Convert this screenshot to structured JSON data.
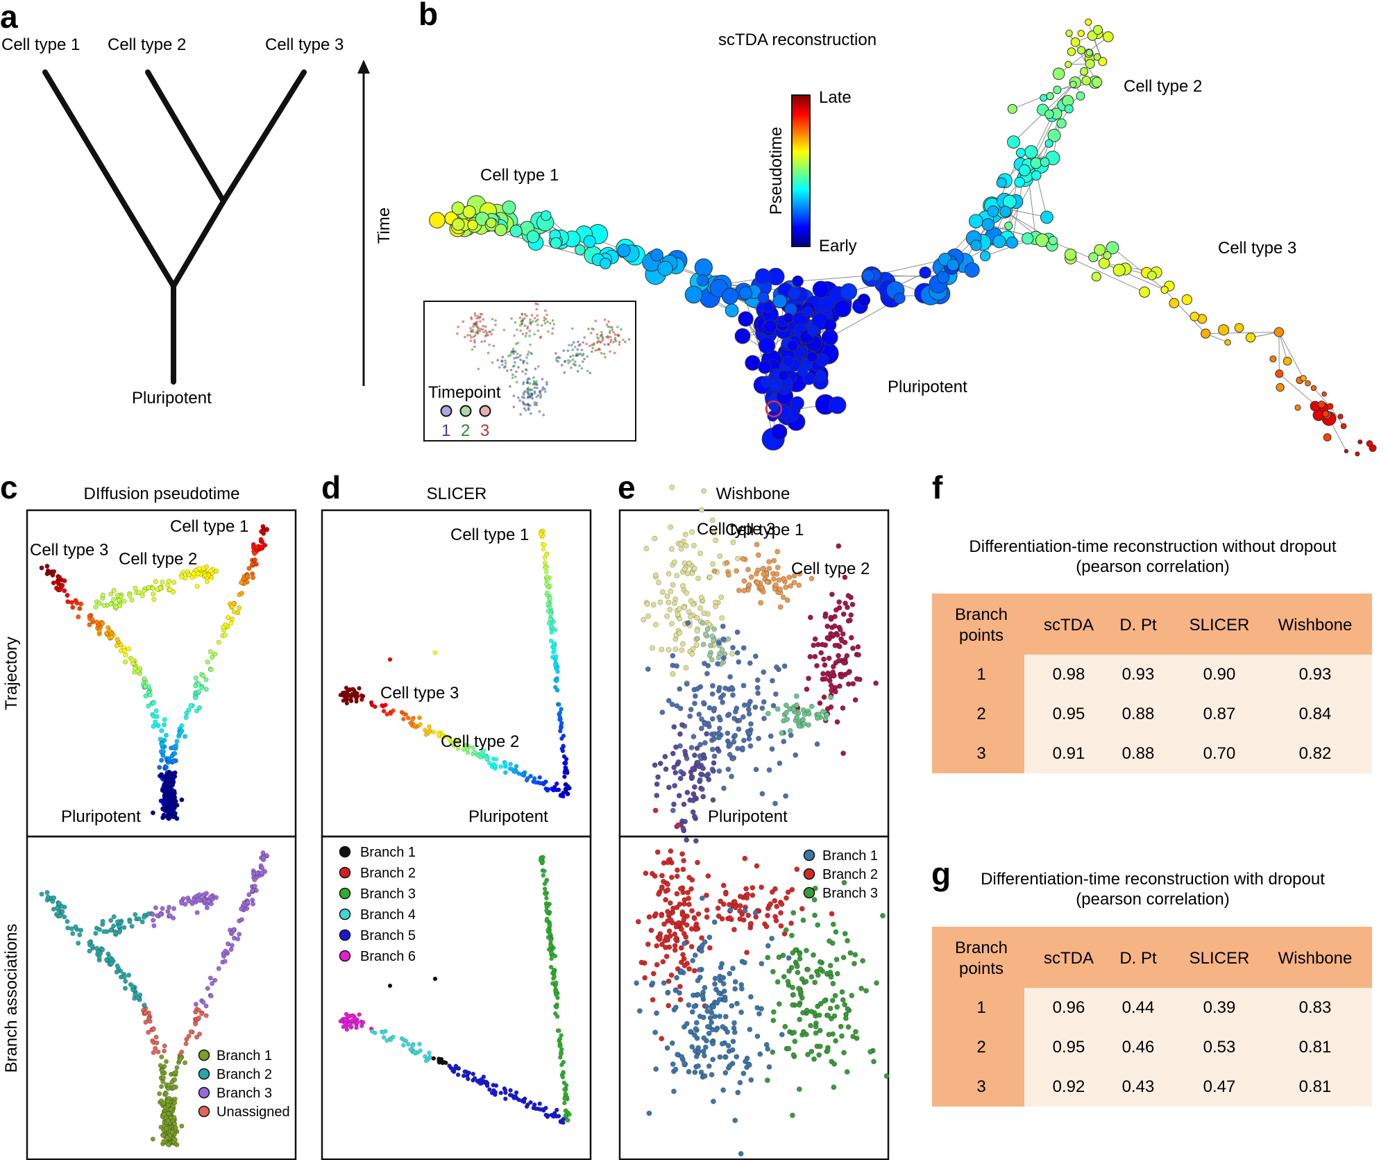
{
  "panels": {
    "a": {
      "letter": "a",
      "labels": [
        "Cell type 1",
        "Cell type 2",
        "Cell type 3"
      ],
      "root": "Pluripotent",
      "axis": "Time"
    },
    "b": {
      "letter": "b",
      "title": "scTDA reconstruction",
      "colorbar": {
        "label": "Pseudotime",
        "high": "Late",
        "low": "Early"
      },
      "labels": {
        "ct1": "Cell type 1",
        "ct2": "Cell type 2",
        "ct3": "Cell type 3",
        "root": "Pluripotent"
      },
      "inset": {
        "title": "Timepoint",
        "items": [
          "1",
          "2",
          "3"
        ],
        "colors": [
          "#3b3bb0",
          "#2a8a2a",
          "#c03030"
        ]
      }
    },
    "c": {
      "letter": "c",
      "title": "DIffusion pseudotime",
      "row_top": "Trajectory",
      "row_bottom": "Branch associations",
      "labels": {
        "ct1": "Cell type 1",
        "ct2": "Cell type 2",
        "ct3": "Cell type 3",
        "root": "Pluripotent"
      },
      "legend": [
        "Branch 1",
        "Branch 2",
        "Branch 3",
        "Unassigned"
      ],
      "legend_colors": [
        "#7aa02a",
        "#2aa6a6",
        "#9a6ad6",
        "#e0665a"
      ]
    },
    "d": {
      "letter": "d",
      "title": "SLICER",
      "labels": {
        "ct1": "Cell type 1",
        "ct2": "Cell type 2",
        "ct3": "Cell type 3",
        "root": "Pluripotent"
      },
      "legend": [
        "Branch 1",
        "Branch 2",
        "Branch 3",
        "Branch 4",
        "Branch 5",
        "Branch 6"
      ],
      "legend_colors": [
        "#111111",
        "#d12020",
        "#2fae2f",
        "#3fd6d6",
        "#1a1ad0",
        "#e020d0"
      ]
    },
    "e": {
      "letter": "e",
      "title": "Wishbone",
      "labels": {
        "ct1": "Cell type 1",
        "ct2": "Cell type 2",
        "ct3": "Cell type 3",
        "root": "Pluripotent"
      },
      "legend": [
        "Branch 1",
        "Branch 2",
        "Branch 3"
      ],
      "legend_colors": [
        "#3d75a8",
        "#d32828",
        "#3a9a3a"
      ]
    },
    "f": {
      "letter": "f",
      "title_line1": "Differentiation-time reconstruction without dropout",
      "title_line2": "(pearson correlation)",
      "header": [
        "Branch points",
        "scTDA",
        "D. Pt",
        "SLICER",
        "Wishbone"
      ],
      "rows": [
        [
          "1",
          "0.98",
          "0.93",
          "0.90",
          "0.93"
        ],
        [
          "2",
          "0.95",
          "0.88",
          "0.87",
          "0.84"
        ],
        [
          "3",
          "0.91",
          "0.88",
          "0.70",
          "0.82"
        ]
      ]
    },
    "g": {
      "letter": "g",
      "title_line1": "Differentiation-time reconstruction with dropout",
      "title_line2": "(pearson correlation)",
      "header": [
        "Branch points",
        "scTDA",
        "D. Pt",
        "SLICER",
        "Wishbone"
      ],
      "rows": [
        [
          "1",
          "0.96",
          "0.44",
          "0.39",
          "0.83"
        ],
        [
          "2",
          "0.95",
          "0.46",
          "0.53",
          "0.81"
        ],
        [
          "3",
          "0.92",
          "0.43",
          "0.47",
          "0.81"
        ]
      ]
    }
  }
}
